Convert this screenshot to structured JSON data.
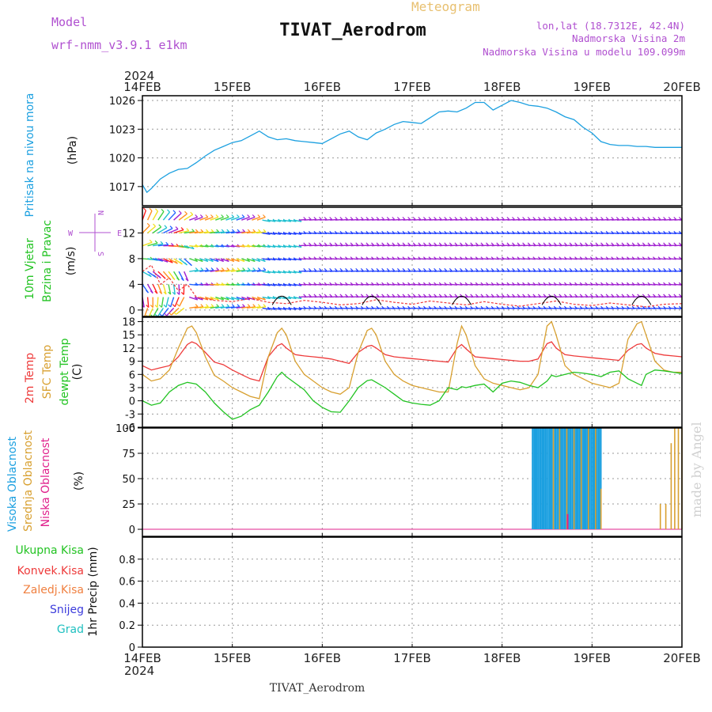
{
  "header": {
    "title": "TIVAT_Aerodrom",
    "subtitle": "Meteogram",
    "model_label": "Model",
    "model_name": "wrf-nmm_v3.9.1 e1km",
    "lonlat": "lon,lat (18.7312E, 42.4N)",
    "elevation": "Nadmorska Visina 2m",
    "model_elevation": "Nadmorska Visina u modelu 109.099m",
    "watermark": "made by Angel",
    "footer": "TIVAT_Aerodrom"
  },
  "colors": {
    "pressure": "#1ca0e0",
    "temp2m": "#ee3a3a",
    "sfc": "#d8a030",
    "dewpt": "#22c322",
    "cloud_high": "#1ca0e0",
    "cloud_mid": "#d8a030",
    "cloud_low": "#e0208c",
    "wind_purple": "#a020d0",
    "wind_blue": "#2040ff",
    "precip_total": "#22c322",
    "precip_conv": "#ee3a3a",
    "precip_frozen": "#f08040",
    "precip_snow": "#3c3cdc",
    "precip_hail": "#20c0c0"
  },
  "axis": {
    "year": "2024",
    "dates": [
      "14FEB",
      "15FEB",
      "16FEB",
      "17FEB",
      "18FEB",
      "19FEB",
      "20FEB"
    ]
  },
  "panels": {
    "pressure": {
      "label": "Pritisak na nivou mora",
      "unit": "(hPa)"
    },
    "wind": {
      "label1": "10m Vjetar",
      "label2": "Brzina i Pravac",
      "unit": "(m/s)",
      "compass_n": "N",
      "compass_s": "S",
      "compass_w": "W",
      "compass_e": "E"
    },
    "temp": {
      "label1": "2m Temp",
      "label2": "SFC Temp",
      "label3": "dewpt Temp",
      "unit": "(C)"
    },
    "cloud": {
      "label1": "Visoka Oblacnost",
      "label2": "Srednja Oblacnost",
      "label3": "Niska Oblacnost",
      "unit": "(%)"
    },
    "precip": {
      "labels": [
        "Ukupna Kisa",
        "Konvek.Kisa",
        "Zaledj.Kisa",
        "Snijeg",
        "Grad"
      ],
      "unit": "1hr Precip (mm)"
    }
  },
  "chart_data": [
    {
      "type": "line",
      "name": "pressure",
      "x_unit": "days since 14FEB 00Z",
      "xlim": [
        0,
        6
      ],
      "ylim": [
        1015,
        1026.5
      ],
      "yticks": [
        1017,
        1020,
        1023,
        1026
      ],
      "series": [
        {
          "name": "Pritisak na nivou mora",
          "x": [
            0,
            0.05,
            0.1,
            0.2,
            0.3,
            0.4,
            0.5,
            0.6,
            0.7,
            0.8,
            0.9,
            1.0,
            1.1,
            1.2,
            1.3,
            1.4,
            1.5,
            1.6,
            1.7,
            1.8,
            1.9,
            2.0,
            2.1,
            2.2,
            2.3,
            2.4,
            2.5,
            2.6,
            2.7,
            2.8,
            2.9,
            3.0,
            3.1,
            3.2,
            3.3,
            3.4,
            3.5,
            3.6,
            3.7,
            3.8,
            3.9,
            4.0,
            4.1,
            4.2,
            4.3,
            4.4,
            4.5,
            4.6,
            4.7,
            4.8,
            4.9,
            5.0,
            5.1,
            5.2,
            5.3,
            5.4,
            5.5,
            5.6,
            5.7,
            5.8,
            5.9,
            6.0
          ],
          "y": [
            1017.2,
            1016.4,
            1016.8,
            1017.8,
            1018.4,
            1018.8,
            1018.9,
            1019.5,
            1020.2,
            1020.8,
            1021.2,
            1021.6,
            1021.8,
            1022.3,
            1022.8,
            1022.2,
            1021.9,
            1022.0,
            1021.8,
            1021.7,
            1021.6,
            1021.5,
            1022.0,
            1022.5,
            1022.8,
            1022.2,
            1021.9,
            1022.6,
            1023.0,
            1023.5,
            1023.8,
            1023.7,
            1023.6,
            1024.2,
            1024.8,
            1024.9,
            1024.8,
            1025.2,
            1025.8,
            1025.8,
            1025.0,
            1025.5,
            1026.0,
            1025.8,
            1025.5,
            1025.4,
            1025.2,
            1024.8,
            1024.3,
            1024.0,
            1023.2,
            1022.6,
            1021.7,
            1021.4,
            1021.3,
            1021.3,
            1021.2,
            1021.2,
            1021.1,
            1021.1,
            1021.1,
            1021.1
          ]
        }
      ]
    },
    {
      "type": "line",
      "name": "wind",
      "xlim": [
        0,
        6
      ],
      "ylim": [
        -1,
        16
      ],
      "yticks": [
        0,
        4,
        8,
        12
      ],
      "series": [
        {
          "name": "speed",
          "color": "#ee3a3a",
          "x": [
            0,
            0.1,
            0.2,
            0.3,
            0.4,
            0.5,
            0.6,
            0.8,
            1.0,
            1.2,
            1.4,
            1.6,
            1.8,
            2.0,
            2.2,
            2.4,
            2.6,
            2.8,
            3.0,
            3.2,
            3.4,
            3.6,
            3.8,
            4.0,
            4.2,
            4.4,
            4.6,
            4.8,
            5.0,
            5.2,
            5.4,
            5.6,
            5.8,
            6.0
          ],
          "y": [
            6,
            7,
            4,
            5,
            3,
            4,
            2,
            1.5,
            1.3,
            1.8,
            1.2,
            1.0,
            1.5,
            1.2,
            0.8,
            1.0,
            1.6,
            1.2,
            0.9,
            1.4,
            1.1,
            0.8,
            1.3,
            0.9,
            0.6,
            1.0,
            1.4,
            0.9,
            0.7,
            1.1,
            0.8,
            0.5,
            0.9,
            1.0
          ]
        }
      ]
    },
    {
      "type": "line",
      "name": "temperature",
      "xlim": [
        0,
        6
      ],
      "ylim": [
        -6,
        19
      ],
      "yticks": [
        -6,
        -3,
        0,
        3,
        6,
        9,
        12,
        15,
        18
      ],
      "series": [
        {
          "name": "2m Temp",
          "x": [
            0,
            0.1,
            0.2,
            0.3,
            0.4,
            0.5,
            0.55,
            0.6,
            0.7,
            0.8,
            0.9,
            1.0,
            1.1,
            1.2,
            1.3,
            1.4,
            1.5,
            1.55,
            1.6,
            1.7,
            1.8,
            1.9,
            2.0,
            2.1,
            2.2,
            2.3,
            2.4,
            2.5,
            2.55,
            2.6,
            2.7,
            2.8,
            2.9,
            3.0,
            3.1,
            3.2,
            3.3,
            3.4,
            3.5,
            3.55,
            3.6,
            3.7,
            3.8,
            3.9,
            4.0,
            4.1,
            4.2,
            4.3,
            4.4,
            4.5,
            4.55,
            4.6,
            4.7,
            4.8,
            4.9,
            5.0,
            5.1,
            5.2,
            5.3,
            5.4,
            5.5,
            5.55,
            5.6,
            5.7,
            5.8,
            5.9,
            6.0
          ],
          "y": [
            8,
            7,
            7.5,
            8,
            10,
            12.8,
            13.4,
            13,
            11,
            8.8,
            8.2,
            7,
            6,
            5,
            4.5,
            10,
            12.5,
            13,
            12,
            10.5,
            10.2,
            10,
            9.8,
            9.5,
            9,
            8.5,
            11,
            12.4,
            12.6,
            12,
            10.5,
            10,
            9.8,
            9.6,
            9.4,
            9.2,
            9,
            8.8,
            12,
            12.8,
            11.8,
            10,
            9.8,
            9.6,
            9.4,
            9.2,
            9.0,
            9.0,
            9.5,
            13,
            13.4,
            12,
            10.5,
            10.2,
            10.0,
            9.8,
            9.6,
            9.4,
            9.2,
            11.5,
            12.8,
            13,
            12,
            10.8,
            10.4,
            10.2,
            10.0
          ]
        },
        {
          "name": "SFC Temp",
          "x": [
            0,
            0.1,
            0.2,
            0.3,
            0.4,
            0.5,
            0.55,
            0.6,
            0.7,
            0.8,
            0.9,
            1.0,
            1.1,
            1.2,
            1.3,
            1.4,
            1.5,
            1.55,
            1.6,
            1.7,
            1.8,
            1.9,
            2.0,
            2.1,
            2.2,
            2.3,
            2.4,
            2.5,
            2.55,
            2.6,
            2.7,
            2.8,
            2.9,
            3.0,
            3.1,
            3.2,
            3.3,
            3.4,
            3.5,
            3.55,
            3.6,
            3.7,
            3.8,
            3.9,
            4.0,
            4.1,
            4.2,
            4.3,
            4.4,
            4.5,
            4.55,
            4.6,
            4.7,
            4.8,
            4.9,
            5.0,
            5.1,
            5.2,
            5.3,
            5.4,
            5.5,
            5.55,
            5.6,
            5.7,
            5.8,
            5.9,
            6.0
          ],
          "y": [
            6,
            4.5,
            5,
            7,
            12,
            16.5,
            17,
            15.5,
            10,
            5.8,
            4.5,
            3,
            2,
            1,
            0.5,
            10,
            15.5,
            16.5,
            15,
            9,
            6,
            4.5,
            3,
            2,
            1.5,
            3,
            11,
            16,
            16.5,
            15,
            9,
            6,
            4.5,
            3.5,
            3,
            2.5,
            2,
            2,
            13,
            17,
            15,
            8,
            5,
            4,
            3.5,
            3,
            2.5,
            3,
            6,
            17,
            18,
            15,
            8,
            6,
            5,
            4,
            3.5,
            3,
            4,
            14,
            17.5,
            18,
            15,
            9,
            7,
            6.5,
            6.5
          ]
        },
        {
          "name": "dewpt Temp",
          "x": [
            0,
            0.1,
            0.2,
            0.3,
            0.4,
            0.5,
            0.55,
            0.6,
            0.7,
            0.8,
            0.9,
            1.0,
            1.1,
            1.2,
            1.3,
            1.4,
            1.5,
            1.55,
            1.6,
            1.7,
            1.8,
            1.9,
            2.0,
            2.1,
            2.2,
            2.3,
            2.4,
            2.5,
            2.55,
            2.6,
            2.7,
            2.8,
            2.9,
            3.0,
            3.1,
            3.2,
            3.3,
            3.4,
            3.5,
            3.55,
            3.6,
            3.7,
            3.8,
            3.9,
            4.0,
            4.1,
            4.2,
            4.3,
            4.4,
            4.5,
            4.55,
            4.6,
            4.7,
            4.8,
            4.9,
            5.0,
            5.1,
            5.2,
            5.3,
            5.4,
            5.5,
            5.55,
            5.6,
            5.7,
            5.8,
            5.9,
            6.0
          ],
          "y": [
            0,
            -1,
            -0.5,
            2,
            3.5,
            4.2,
            4.0,
            3.8,
            2,
            -0.5,
            -2.5,
            -4.2,
            -3.5,
            -2,
            -1,
            2,
            5.5,
            6.5,
            5.5,
            4,
            2.5,
            0,
            -1.5,
            -2.5,
            -2.6,
            0,
            3,
            4.6,
            4.8,
            4.2,
            3,
            1.5,
            0,
            -0.5,
            -0.8,
            -1,
            0,
            3,
            2.5,
            3.2,
            3.0,
            3.5,
            3.8,
            2,
            4,
            4.5,
            4.2,
            3.5,
            3,
            4.5,
            5.8,
            5.5,
            6,
            6.5,
            6.3,
            6,
            5.5,
            6.5,
            6.8,
            5,
            4,
            3.5,
            6,
            7,
            6.8,
            6.5,
            6.2
          ]
        }
      ]
    },
    {
      "type": "bar",
      "name": "cloud",
      "xlim": [
        0,
        6
      ],
      "ylim": [
        0,
        100
      ],
      "yticks": [
        0,
        25,
        50,
        75,
        100
      ],
      "series": [
        {
          "name": "Visoka Oblacnost",
          "x_range": [
            4.33,
            5.1
          ],
          "value": 100
        },
        {
          "name": "Srednja Oblacnost",
          "x": [
            4.55,
            4.62,
            4.7,
            4.78,
            4.86,
            4.94,
            5.02,
            5.08,
            5.74,
            5.8,
            5.86,
            5.9,
            5.94,
            5.98
          ],
          "values": [
            100,
            100,
            100,
            100,
            100,
            100,
            100,
            40,
            25,
            25,
            85,
            100,
            100,
            100
          ]
        },
        {
          "name": "Niska Oblacnost",
          "x": [
            4.72
          ],
          "values": [
            15
          ]
        }
      ]
    },
    {
      "type": "bar",
      "name": "precip",
      "xlim": [
        0,
        6
      ],
      "ylim": [
        0,
        1.0
      ],
      "yticks": [
        0,
        0.2,
        0.4,
        0.6,
        0.8
      ],
      "series": [
        {
          "name": "Ukupna Kisa",
          "values": []
        }
      ]
    }
  ]
}
